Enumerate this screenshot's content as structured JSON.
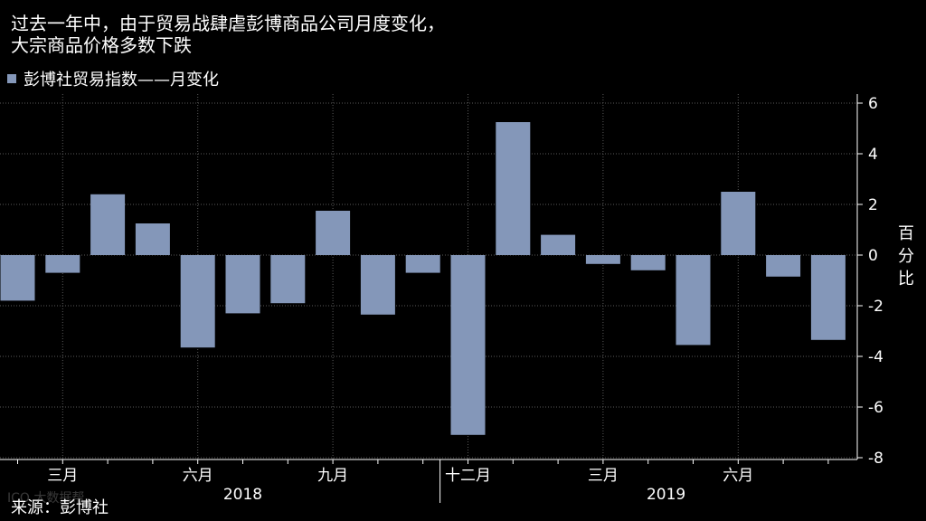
{
  "title_lines": [
    "过去一年中，由于贸易战肆虐彭博商品公司月度变化，",
    "大宗商品价格多数下跌"
  ],
  "legend": {
    "label": "彭博社贸易指数——月变化",
    "color": "#8497b9"
  },
  "source": "来源：彭博社",
  "watermark": "ICO 大数据帮",
  "colors": {
    "background": "#000000",
    "bar": "#8497b9",
    "grid": "#5a5a5a",
    "text": "#ffffff"
  },
  "chart_data": {
    "type": "bar",
    "x": [
      "2018-02",
      "2018-03",
      "2018-04",
      "2018-05",
      "2018-06",
      "2018-07",
      "2018-08",
      "2018-09",
      "2018-10",
      "2018-11",
      "2018-12",
      "2019-01",
      "2019-02",
      "2019-03",
      "2019-04",
      "2019-05",
      "2019-06",
      "2019-07",
      "2019-08"
    ],
    "series": [
      {
        "name": "彭博社贸易指数——月变化",
        "values": [
          -1.8,
          -0.7,
          2.4,
          1.25,
          -3.65,
          -2.3,
          -1.9,
          1.75,
          -2.35,
          -0.7,
          -7.1,
          5.25,
          0.8,
          -0.35,
          -0.6,
          -3.55,
          2.5,
          -0.85,
          -3.35
        ]
      }
    ],
    "ylim": [
      -8,
      6
    ],
    "yticks": [
      -8,
      -6,
      -4,
      -2,
      0,
      2,
      4,
      6
    ],
    "ytick_labels": [
      "-8",
      "-6",
      "-4",
      "-2",
      "0",
      "2",
      "4",
      "6"
    ],
    "ylabel": "百分比",
    "x_tick_labels": [
      {
        "index": 1,
        "label": "三月"
      },
      {
        "index": 4,
        "label": "六月"
      },
      {
        "index": 7,
        "label": "九月"
      },
      {
        "index": 10,
        "label": "十二月"
      },
      {
        "index": 13,
        "label": "三月"
      },
      {
        "index": 16,
        "label": "六月"
      }
    ],
    "year_labels": [
      {
        "center_index": 5,
        "label": "2018"
      },
      {
        "center_index": 14.4,
        "label": "2019"
      }
    ],
    "year_divider_after_index": 9,
    "grid": true
  }
}
